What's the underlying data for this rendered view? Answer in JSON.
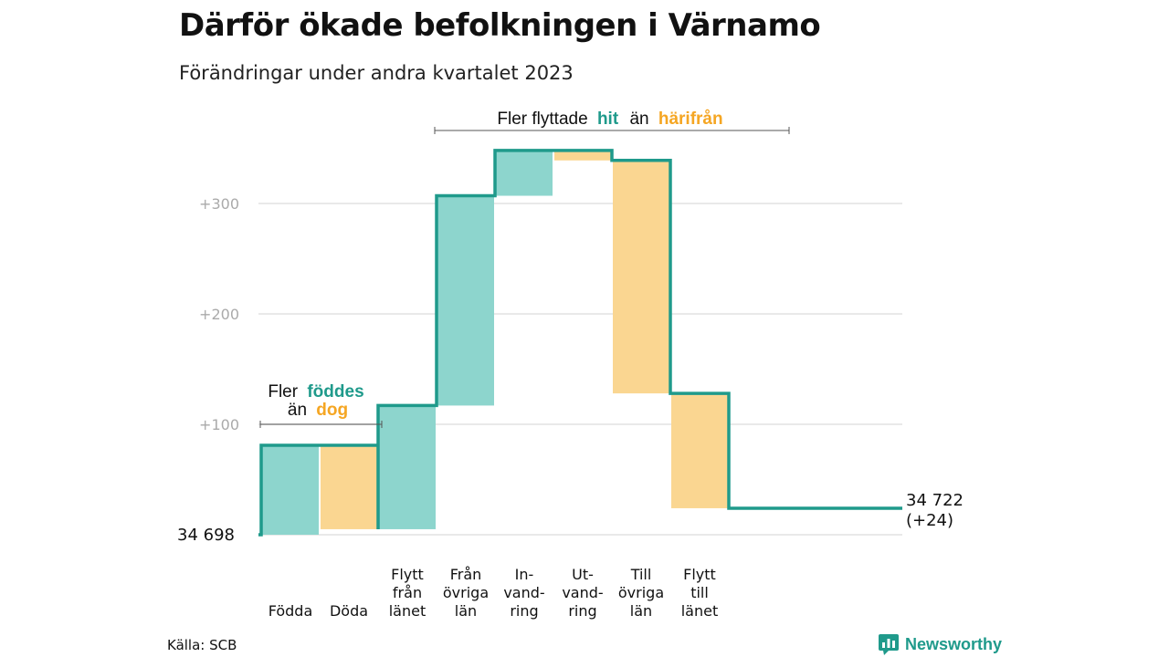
{
  "title": "Därför ökade befolkningen i Värnamo",
  "subtitle": "Förändringar under andra kvartalet 2023",
  "source": "Källa: SCB",
  "brand": {
    "name": "Newsworthy",
    "icon": "bar-chart-speech-icon"
  },
  "colors": {
    "increase_fill": "#8dd5cd",
    "decrease_fill": "#fad691",
    "line": "#1f9a8b",
    "increase_text": "#1f9a8b",
    "decrease_text": "#f5a623",
    "grid": "#e2e2e2",
    "tick_text": "#aaaaaa"
  },
  "chart_data": {
    "type": "waterfall",
    "start": {
      "value": 0,
      "label": "34  698"
    },
    "end": {
      "value": 24,
      "label_line1": "34 722",
      "label_line2": "(+24)"
    },
    "yticks": [
      {
        "value": 100,
        "label": "+100"
      },
      {
        "value": 200,
        "label": "+200"
      },
      {
        "value": 300,
        "label": "+300"
      }
    ],
    "ylim": [
      0,
      350
    ],
    "grid": true,
    "steps": [
      {
        "category": "Födda",
        "lines": [
          "Födda"
        ],
        "from": 0,
        "to": 81,
        "kind": "increase"
      },
      {
        "category": "Döda",
        "lines": [
          "Döda"
        ],
        "from": 81,
        "to": 5,
        "kind": "decrease"
      },
      {
        "category": "Flytt från länet",
        "lines": [
          "Flytt",
          "från",
          "länet"
        ],
        "from": 5,
        "to": 117,
        "kind": "increase"
      },
      {
        "category": "Från övriga län",
        "lines": [
          "Från",
          "övriga",
          "län"
        ],
        "from": 117,
        "to": 307,
        "kind": "increase"
      },
      {
        "category": "In-vand-ring",
        "lines": [
          "In-",
          "vand-",
          "ring"
        ],
        "from": 307,
        "to": 348,
        "kind": "increase"
      },
      {
        "category": "Ut-vand-ring",
        "lines": [
          "Ut-",
          "vand-",
          "ring"
        ],
        "from": 348,
        "to": 339,
        "kind": "decrease"
      },
      {
        "category": "Till övriga län",
        "lines": [
          "Till",
          "övriga",
          "län"
        ],
        "from": 339,
        "to": 128,
        "kind": "decrease"
      },
      {
        "category": "Flytt till länet",
        "lines": [
          "Flytt",
          "till",
          "länet"
        ],
        "from": 128,
        "to": 24,
        "kind": "decrease"
      }
    ],
    "annotations": [
      {
        "text_a": "Fler",
        "text_b": "föddes",
        "text_c": "än",
        "text_d": "dog"
      },
      {
        "text_a": "Fler flyttade",
        "text_b": "hit",
        "text_c": "än",
        "text_d": "härifrån"
      }
    ]
  }
}
